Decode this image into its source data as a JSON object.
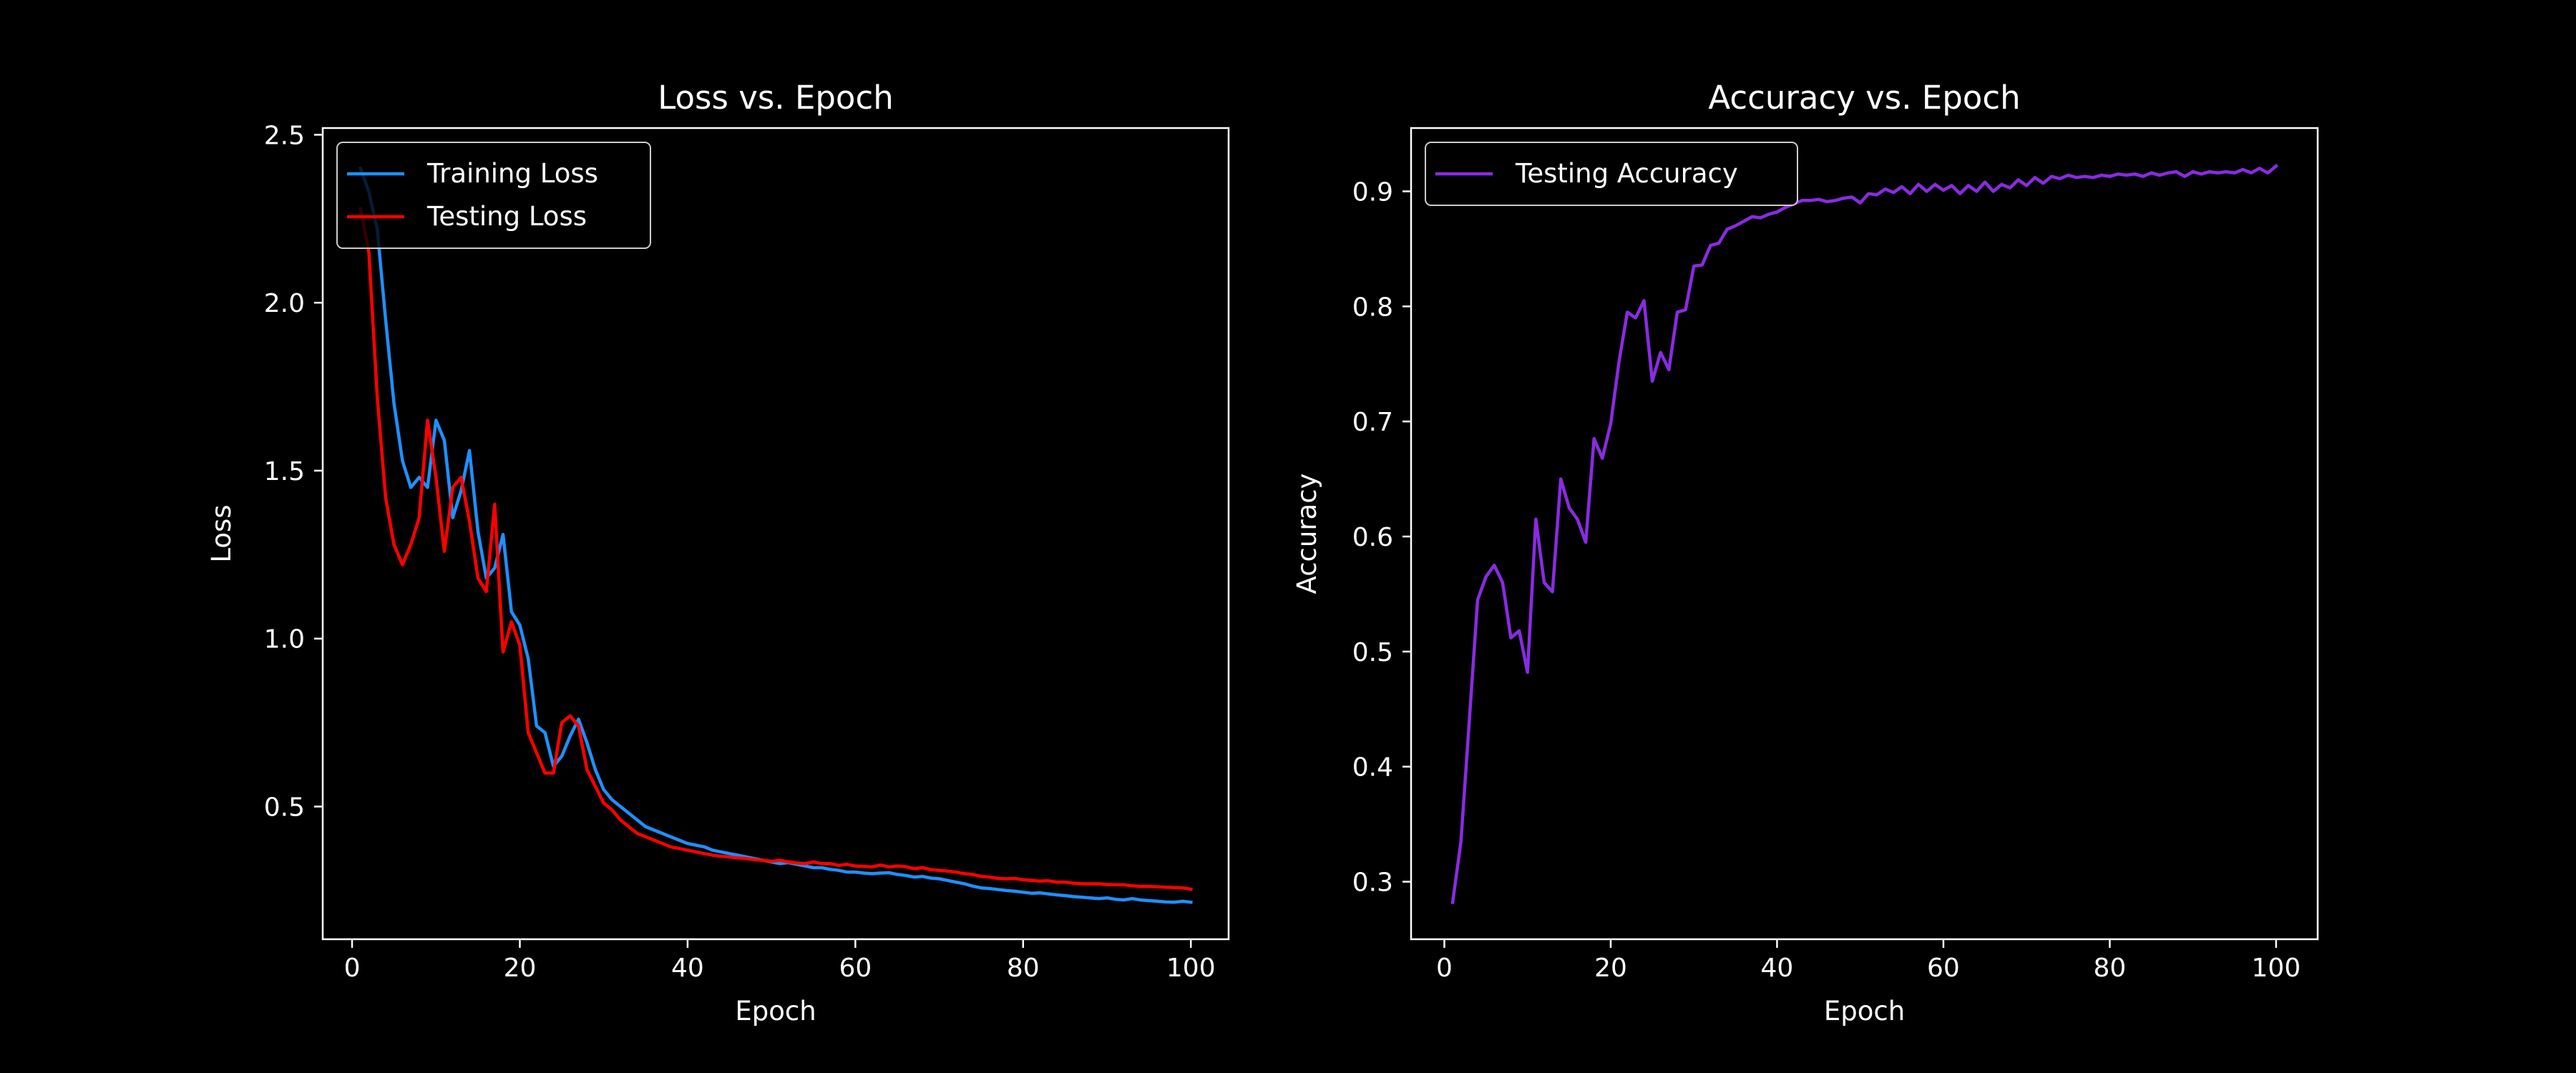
{
  "colors": {
    "background": "#000000",
    "foreground": "#ffffff",
    "training_loss": "#1e90ff",
    "testing_loss": "#ff0000",
    "testing_accuracy": "#8a2be2"
  },
  "chart_data": [
    {
      "type": "line",
      "title": "Loss vs. Epoch",
      "xlabel": "Epoch",
      "ylabel": "Loss",
      "xlim": [
        -3.5,
        104.5
      ],
      "ylim": [
        0.105,
        2.52
      ],
      "xticks": [
        0,
        20,
        40,
        60,
        80,
        100
      ],
      "xtick_labels": [
        "0",
        "20",
        "40",
        "60",
        "80",
        "100"
      ],
      "yticks": [
        0.5,
        1.0,
        1.5,
        2.0,
        2.5
      ],
      "ytick_labels": [
        "0.5",
        "1.0",
        "1.5",
        "2.0",
        "2.5"
      ],
      "grid": false,
      "legend": "top-left",
      "x": [
        1,
        2,
        3,
        4,
        5,
        6,
        7,
        8,
        9,
        10,
        11,
        12,
        13,
        14,
        15,
        16,
        17,
        18,
        19,
        20,
        21,
        22,
        23,
        24,
        25,
        26,
        27,
        28,
        29,
        30,
        31,
        32,
        33,
        34,
        35,
        36,
        37,
        38,
        39,
        40,
        41,
        42,
        43,
        44,
        45,
        46,
        47,
        48,
        49,
        50,
        51,
        52,
        53,
        54,
        55,
        56,
        57,
        58,
        59,
        60,
        61,
        62,
        63,
        64,
        65,
        66,
        67,
        68,
        69,
        70,
        71,
        72,
        73,
        74,
        75,
        76,
        77,
        78,
        79,
        80,
        81,
        82,
        83,
        84,
        85,
        86,
        87,
        88,
        89,
        90,
        91,
        92,
        93,
        94,
        95,
        96,
        97,
        98,
        99,
        100
      ],
      "series": [
        {
          "name": "Training Loss",
          "values": [
            2.4,
            2.33,
            2.22,
            1.95,
            1.7,
            1.53,
            1.45,
            1.48,
            1.45,
            1.65,
            1.59,
            1.36,
            1.44,
            1.56,
            1.32,
            1.18,
            1.21,
            1.31,
            1.08,
            1.04,
            0.94,
            0.74,
            0.72,
            0.62,
            0.65,
            0.71,
            0.76,
            0.69,
            0.61,
            0.55,
            0.52,
            0.5,
            0.48,
            0.46,
            0.44,
            0.43,
            0.42,
            0.41,
            0.4,
            0.39,
            0.385,
            0.38,
            0.37,
            0.365,
            0.36,
            0.355,
            0.35,
            0.345,
            0.34,
            0.335,
            0.33,
            0.333,
            0.328,
            0.323,
            0.318,
            0.318,
            0.313,
            0.31,
            0.305,
            0.305,
            0.302,
            0.3,
            0.302,
            0.303,
            0.298,
            0.295,
            0.29,
            0.292,
            0.287,
            0.285,
            0.28,
            0.275,
            0.27,
            0.263,
            0.258,
            0.256,
            0.253,
            0.25,
            0.248,
            0.245,
            0.242,
            0.243,
            0.24,
            0.237,
            0.235,
            0.232,
            0.23,
            0.228,
            0.226,
            0.228,
            0.224,
            0.222,
            0.226,
            0.222,
            0.22,
            0.218,
            0.216,
            0.215,
            0.218,
            0.215
          ]
        },
        {
          "name": "Testing Loss",
          "values": [
            2.28,
            2.15,
            1.72,
            1.42,
            1.28,
            1.22,
            1.28,
            1.36,
            1.65,
            1.48,
            1.26,
            1.45,
            1.48,
            1.35,
            1.18,
            1.14,
            1.4,
            0.96,
            1.05,
            0.98,
            0.72,
            0.66,
            0.6,
            0.6,
            0.75,
            0.77,
            0.74,
            0.61,
            0.56,
            0.51,
            0.49,
            0.46,
            0.44,
            0.42,
            0.41,
            0.4,
            0.39,
            0.38,
            0.375,
            0.37,
            0.365,
            0.36,
            0.355,
            0.352,
            0.35,
            0.347,
            0.345,
            0.342,
            0.34,
            0.337,
            0.34,
            0.335,
            0.332,
            0.33,
            0.335,
            0.33,
            0.33,
            0.325,
            0.328,
            0.323,
            0.322,
            0.32,
            0.326,
            0.32,
            0.323,
            0.321,
            0.315,
            0.318,
            0.312,
            0.31,
            0.308,
            0.305,
            0.3,
            0.298,
            0.292,
            0.29,
            0.286,
            0.285,
            0.286,
            0.282,
            0.28,
            0.278,
            0.279,
            0.275,
            0.275,
            0.272,
            0.27,
            0.27,
            0.27,
            0.268,
            0.267,
            0.267,
            0.264,
            0.262,
            0.262,
            0.261,
            0.26,
            0.259,
            0.258,
            0.254
          ]
        }
      ]
    },
    {
      "type": "line",
      "title": "Accuracy vs. Epoch",
      "xlabel": "Epoch",
      "ylabel": "Accuracy",
      "xlim": [
        -4,
        105
      ],
      "ylim": [
        0.25,
        0.955
      ],
      "xticks": [
        0,
        20,
        40,
        60,
        80,
        100
      ],
      "xtick_labels": [
        "0",
        "20",
        "40",
        "60",
        "80",
        "100"
      ],
      "yticks": [
        0.3,
        0.4,
        0.5,
        0.6,
        0.7,
        0.8,
        0.9
      ],
      "ytick_labels": [
        "0.3",
        "0.4",
        "0.5",
        "0.6",
        "0.7",
        "0.8",
        "0.9"
      ],
      "grid": false,
      "legend": "top-left",
      "x": [
        1,
        2,
        3,
        4,
        5,
        6,
        7,
        8,
        9,
        10,
        11,
        12,
        13,
        14,
        15,
        16,
        17,
        18,
        19,
        20,
        21,
        22,
        23,
        24,
        25,
        26,
        27,
        28,
        29,
        30,
        31,
        32,
        33,
        34,
        35,
        36,
        37,
        38,
        39,
        40,
        41,
        42,
        43,
        44,
        45,
        46,
        47,
        48,
        49,
        50,
        51,
        52,
        53,
        54,
        55,
        56,
        57,
        58,
        59,
        60,
        61,
        62,
        63,
        64,
        65,
        66,
        67,
        68,
        69,
        70,
        71,
        72,
        73,
        74,
        75,
        76,
        77,
        78,
        79,
        80,
        81,
        82,
        83,
        84,
        85,
        86,
        87,
        88,
        89,
        90,
        91,
        92,
        93,
        94,
        95,
        96,
        97,
        98,
        99,
        100
      ],
      "series": [
        {
          "name": "Testing Accuracy",
          "values": [
            0.282,
            0.335,
            0.44,
            0.545,
            0.565,
            0.575,
            0.56,
            0.512,
            0.518,
            0.482,
            0.615,
            0.56,
            0.552,
            0.65,
            0.625,
            0.615,
            0.595,
            0.685,
            0.668,
            0.698,
            0.752,
            0.795,
            0.79,
            0.805,
            0.735,
            0.76,
            0.745,
            0.795,
            0.797,
            0.835,
            0.836,
            0.853,
            0.855,
            0.867,
            0.87,
            0.874,
            0.878,
            0.877,
            0.88,
            0.882,
            0.886,
            0.889,
            0.892,
            0.892,
            0.893,
            0.891,
            0.892,
            0.894,
            0.895,
            0.89,
            0.898,
            0.897,
            0.902,
            0.899,
            0.904,
            0.898,
            0.906,
            0.9,
            0.906,
            0.901,
            0.905,
            0.898,
            0.905,
            0.9,
            0.908,
            0.9,
            0.906,
            0.903,
            0.91,
            0.905,
            0.912,
            0.907,
            0.913,
            0.911,
            0.914,
            0.912,
            0.913,
            0.912,
            0.914,
            0.913,
            0.915,
            0.914,
            0.915,
            0.913,
            0.916,
            0.914,
            0.916,
            0.917,
            0.913,
            0.917,
            0.915,
            0.917,
            0.916,
            0.917,
            0.916,
            0.919,
            0.916,
            0.92,
            0.916,
            0.922
          ]
        }
      ]
    }
  ]
}
